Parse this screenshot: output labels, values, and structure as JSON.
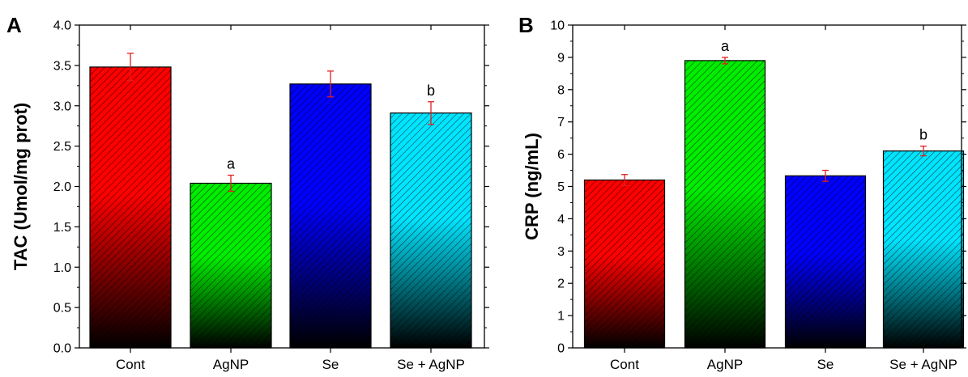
{
  "chart_data": [
    {
      "type": "bar",
      "panel": "A",
      "ylabel": "TAC (Umol/mg prot)",
      "categories": [
        "Cont",
        "AgNP",
        "Se",
        "Se + AgNP"
      ],
      "values": [
        3.48,
        2.04,
        3.27,
        2.91
      ],
      "errors": [
        0.17,
        0.1,
        0.16,
        0.14
      ],
      "annotations": [
        "",
        "a",
        "",
        "b"
      ],
      "ylim": [
        0,
        4.0
      ],
      "yticks": [
        "0.0",
        "0.5",
        "1.0",
        "1.5",
        "2.0",
        "2.5",
        "3.0",
        "3.5",
        "4.0"
      ],
      "bar_colors": [
        "#ff0000",
        "#00ee00",
        "#0000ff",
        "#00e5ff"
      ],
      "grid": false
    },
    {
      "type": "bar",
      "panel": "B",
      "ylabel": "CRP (ng/mL)",
      "categories": [
        "Cont",
        "AgNP",
        "Se",
        "Se + AgNP"
      ],
      "values": [
        5.2,
        8.9,
        5.33,
        6.1
      ],
      "errors": [
        0.17,
        0.1,
        0.17,
        0.15
      ],
      "annotations": [
        "",
        "a",
        "",
        "b"
      ],
      "ylim": [
        0,
        10
      ],
      "yticks": [
        "0",
        "1",
        "2",
        "3",
        "4",
        "5",
        "6",
        "7",
        "8",
        "9",
        "10"
      ],
      "bar_colors": [
        "#ff0000",
        "#00ee00",
        "#0000ff",
        "#00e5ff"
      ],
      "grid": false
    }
  ]
}
